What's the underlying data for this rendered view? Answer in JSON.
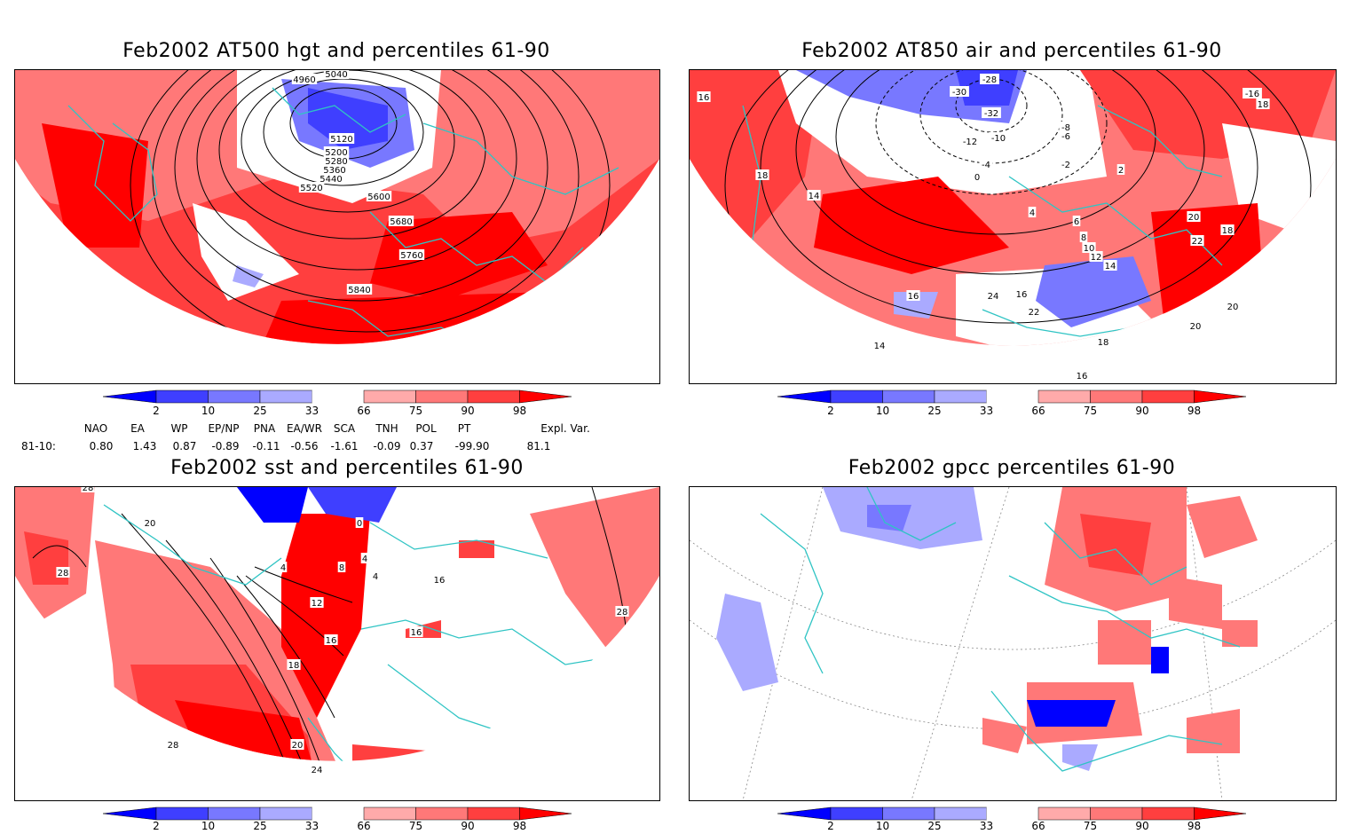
{
  "panels": [
    {
      "id": "p1",
      "title": "Feb2002 AT500 hgt and percentiles 61-90",
      "contour_labels": [
        "5040",
        "4960",
        "5120",
        "5200",
        "5280",
        "5360",
        "5440",
        "5520",
        "5600",
        "5680",
        "5760",
        "5840"
      ]
    },
    {
      "id": "p2",
      "title": "Feb2002 AT850 air and percentiles 61-90",
      "contour_labels": [
        "-28",
        "-30",
        "-16",
        "16",
        "18",
        "-32",
        "-8",
        "-12",
        "-10",
        "-6",
        "-4",
        "-2",
        "0",
        "2",
        "18",
        "14",
        "4",
        "6",
        "8",
        "10",
        "12",
        "14",
        "16",
        "20",
        "22",
        "18",
        "16",
        "24",
        "20",
        "22",
        "20",
        "18",
        "14",
        "16"
      ]
    },
    {
      "id": "p3",
      "title": "Feb2002 sst and percentiles 61-90",
      "contour_labels": [
        "28",
        "20",
        "28",
        "0",
        "4",
        "4",
        "8",
        "12",
        "16",
        "18",
        "20",
        "24",
        "28",
        "28",
        "16",
        "16",
        "4"
      ]
    },
    {
      "id": "p4",
      "title": "Feb2002 gpcc percentiles 61-90",
      "contour_labels": []
    }
  ],
  "colorbar": {
    "labels": [
      "2",
      "10",
      "25",
      "33",
      "66",
      "75",
      "90",
      "98"
    ],
    "colors": [
      "#0000ff",
      "#3f3fff",
      "#7878ff",
      "#aaaaff",
      "#ffffff",
      "#ffaaaa",
      "#ff7878",
      "#ff3f3f",
      "#ff0000"
    ]
  },
  "indices": {
    "headers": [
      "NAO",
      "EA",
      "WP",
      "EP/NP",
      "PNA",
      "EA/WR",
      "SCA",
      "TNH",
      "POL",
      "PT",
      "Expl. Var."
    ],
    "row_label": "81-10:",
    "values": [
      "0.80",
      "1.43",
      "0.87",
      "-0.89",
      "-0.11",
      "-0.56",
      "-1.61",
      "-0.09",
      "0.37",
      "-99.90",
      "81.1"
    ]
  },
  "palette": {
    "coast": "#2fc4c4",
    "contour": "#000000"
  }
}
